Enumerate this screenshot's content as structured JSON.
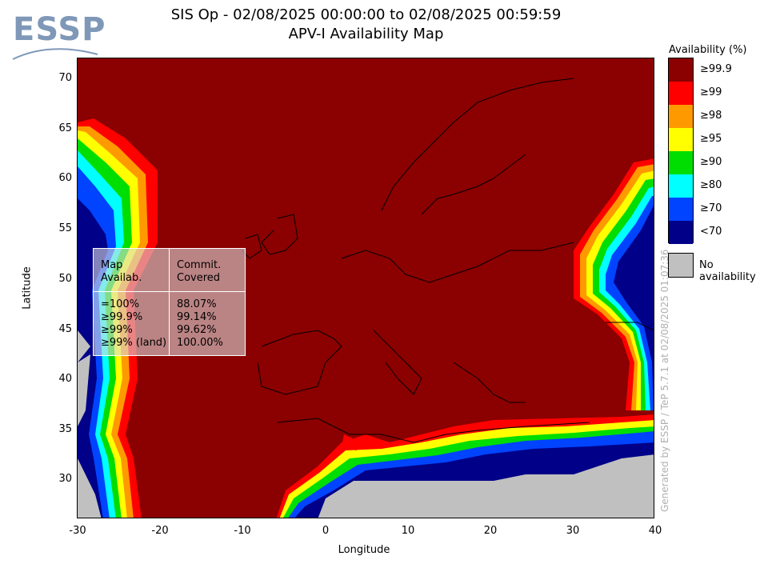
{
  "header": {
    "title_line1": "SIS Op - 02/08/2025 00:00:00 to 02/08/2025 00:59:59",
    "title_line2": "APV-I Availability Map",
    "logo_text": "ESSP"
  },
  "axes": {
    "x_title": "Longitude",
    "y_title": "Latitude",
    "x_ticks": [
      "-30",
      "-20",
      "-10",
      "0",
      "10",
      "20",
      "30",
      "40"
    ],
    "y_ticks": [
      "70",
      "65",
      "60",
      "55",
      "50",
      "45",
      "40",
      "35",
      "30"
    ],
    "x_range": [
      -30,
      40
    ],
    "y_range": [
      26,
      72
    ]
  },
  "legend": {
    "title": "Availability (%)",
    "items": [
      {
        "label": "≥99.9",
        "color": "#8b0000"
      },
      {
        "label": "≥99",
        "color": "#ff0000"
      },
      {
        "label": "≥98",
        "color": "#ff9900"
      },
      {
        "label": "≥95",
        "color": "#ffff00"
      },
      {
        "label": "≥90",
        "color": "#00dd00"
      },
      {
        "label": "≥80",
        "color": "#00ffff"
      },
      {
        "label": "≥70",
        "color": "#0044ff"
      },
      {
        "label": "<70",
        "color": "#000088"
      }
    ],
    "no_availability": {
      "label": "No availability",
      "color": "#c0c0c0"
    }
  },
  "stats": {
    "col1_header": [
      "Map",
      "Availab."
    ],
    "col2_header": [
      "Commit.",
      "Covered"
    ],
    "rows": [
      {
        "level": "=100%",
        "covered": "88.07%"
      },
      {
        "level": "≥99.9%",
        "covered": "99.14%"
      },
      {
        "level": "≥99%",
        "covered": "99.62%"
      },
      {
        "level": "≥99% (land)",
        "covered": "100.00%"
      }
    ]
  },
  "footer": {
    "generated": "Generated by ESSP / TeP 5.7.1 at 02/08/2025 01:07:36"
  }
}
